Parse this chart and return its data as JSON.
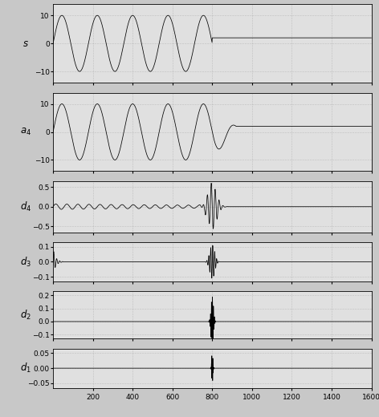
{
  "n_samples": 1600,
  "transition_point": 800,
  "sine_amplitude": 10,
  "dc_value": 2,
  "cycles_before": 4.5,
  "panels": [
    {
      "label": "s",
      "ylim": [
        -14,
        14
      ],
      "yticks": [
        -10,
        0,
        10
      ]
    },
    {
      "label": "a$_4$",
      "ylim": [
        -14,
        14
      ],
      "yticks": [
        -10,
        0,
        10
      ]
    },
    {
      "label": "d$_4$",
      "ylim": [
        -0.65,
        0.65
      ],
      "yticks": [
        -0.5,
        0,
        0.5
      ]
    },
    {
      "label": "d$_3$",
      "ylim": [
        -0.13,
        0.13
      ],
      "yticks": [
        -0.1,
        0,
        0.1
      ]
    },
    {
      "label": "d$_2$",
      "ylim": [
        -0.13,
        0.23
      ],
      "yticks": [
        -0.1,
        0,
        0.1,
        0.2
      ]
    },
    {
      "label": "d$_1$",
      "ylim": [
        -0.065,
        0.065
      ],
      "yticks": [
        -0.05,
        0,
        0.05
      ]
    }
  ],
  "xlim": [
    0,
    1600
  ],
  "xticks": [
    200,
    400,
    600,
    800,
    1000,
    1200,
    1400,
    1600
  ],
  "background_color": "#c8c8c8",
  "plot_bg_color": "#e0e0e0",
  "line_color": "black",
  "figsize": [
    4.72,
    5.2
  ],
  "dpi": 100,
  "height_ratios": [
    2.0,
    2.0,
    1.3,
    1.0,
    1.2,
    1.0
  ]
}
